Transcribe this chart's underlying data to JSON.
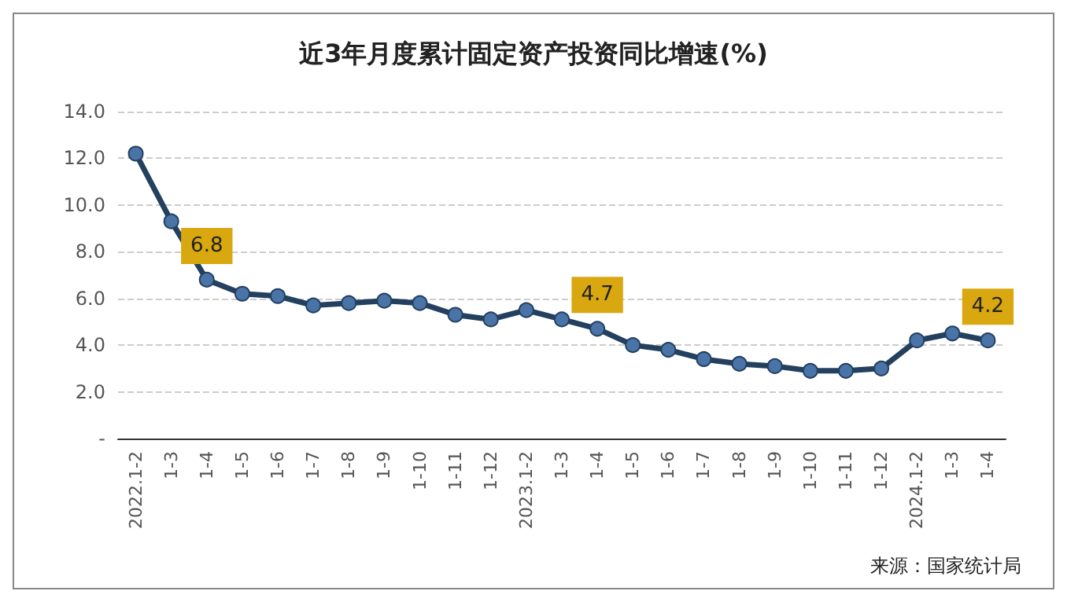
{
  "chart_data": {
    "type": "line",
    "title": "近3年月度累计固定资产投资同比增速(%)",
    "categories": [
      "2022.1-2",
      "1-3",
      "1-4",
      "1-5",
      "1-6",
      "1-7",
      "1-8",
      "1-9",
      "1-10",
      "1-11",
      "1-12",
      "2023.1-2",
      "1-3",
      "1-4",
      "1-5",
      "1-6",
      "1-7",
      "1-8",
      "1-9",
      "1-10",
      "1-11",
      "1-12",
      "2024.1-2",
      "1-3",
      "1-4"
    ],
    "series": [
      {
        "color": "#23405f",
        "values": [
          12.2,
          9.3,
          6.8,
          6.2,
          6.1,
          5.7,
          5.8,
          5.9,
          5.8,
          5.3,
          5.1,
          5.5,
          5.1,
          4.7,
          4.0,
          3.8,
          3.4,
          3.2,
          3.1,
          2.9,
          2.9,
          3.0,
          4.2,
          4.5,
          4.2
        ],
        "value_labels": [
          null,
          null,
          "6.8",
          null,
          null,
          null,
          null,
          null,
          null,
          null,
          null,
          null,
          null,
          "4.7",
          null,
          null,
          null,
          null,
          null,
          null,
          null,
          null,
          null,
          null,
          "4.2"
        ]
      }
    ],
    "ylim": [
      0,
      14
    ],
    "yticks": [
      {
        "value": 0,
        "label": "-"
      },
      {
        "value": 2,
        "label": "2.0"
      },
      {
        "value": 4,
        "label": "4.0"
      },
      {
        "value": 6,
        "label": "6.0"
      },
      {
        "value": 8,
        "label": "8.0"
      },
      {
        "value": 10,
        "label": "10.0"
      },
      {
        "value": 12,
        "label": "12.0"
      },
      {
        "value": 14,
        "label": "14.0"
      }
    ],
    "grid": "y",
    "marker": "circle",
    "line_style": "solid",
    "annotations": [
      "来源：国家统计局"
    ]
  }
}
